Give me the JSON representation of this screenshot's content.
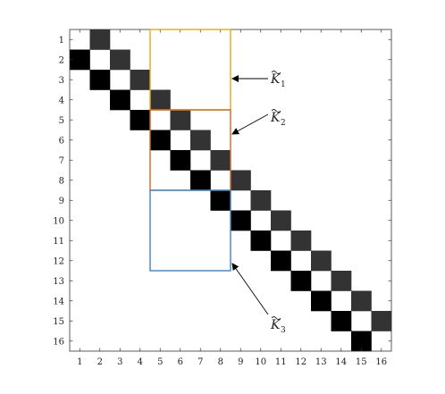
{
  "matrix": {
    "size": 16,
    "row_labels": [
      "1",
      "2",
      "3",
      "4",
      "5",
      "6",
      "7",
      "8",
      "9",
      "10",
      "11",
      "12",
      "13",
      "14",
      "15",
      "16"
    ],
    "col_labels": [
      "1",
      "2",
      "3",
      "4",
      "5",
      "6",
      "7",
      "8",
      "9",
      "10",
      "11",
      "12",
      "13",
      "14",
      "15",
      "16"
    ],
    "colors": {
      "subdiagonal": "#000000",
      "superdiagonal": "#333333",
      "background": "#ffffff"
    }
  },
  "blocks": [
    {
      "id": "K1",
      "symbol": "K",
      "subscript": "1",
      "rows": [
        1,
        4
      ],
      "cols": [
        5,
        8
      ],
      "color": "#e6a817"
    },
    {
      "id": "K2",
      "symbol": "K",
      "subscript": "2",
      "rows": [
        5,
        8
      ],
      "cols": [
        5,
        8
      ],
      "color": "#d2691e"
    },
    {
      "id": "K3",
      "symbol": "K",
      "subscript": "3",
      "rows": [
        9,
        12
      ],
      "cols": [
        5,
        8
      ],
      "color": "#3a86c8"
    }
  ]
}
